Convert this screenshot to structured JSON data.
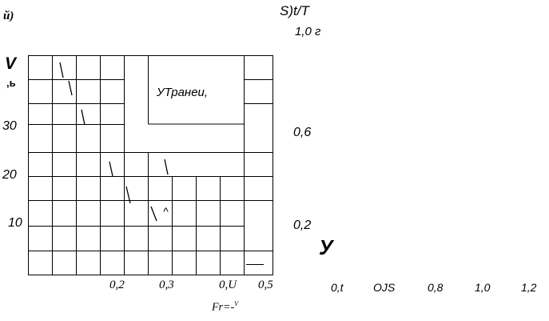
{
  "panel_label": "й)",
  "right_scale_title": "S)t/T",
  "right_scale_top": "1,0 г",
  "y_axis_symbol": "V",
  "y_axis_unit": ",ь",
  "y_ticks": [
    "30",
    "20",
    "10"
  ],
  "region_label": "УТранеи,",
  "right_ticks": [
    "0,6",
    "0,2"
  ],
  "x_ticks": [
    "0,2",
    "0,3",
    "0,U",
    "0,5"
  ],
  "x_axis_label": "Fr=-",
  "x_axis_label_sup": "V",
  "y_symbol_large": "У",
  "bottom_scale": [
    "0,t",
    "OJS",
    "0,8",
    "1,0",
    "1,2"
  ]
}
